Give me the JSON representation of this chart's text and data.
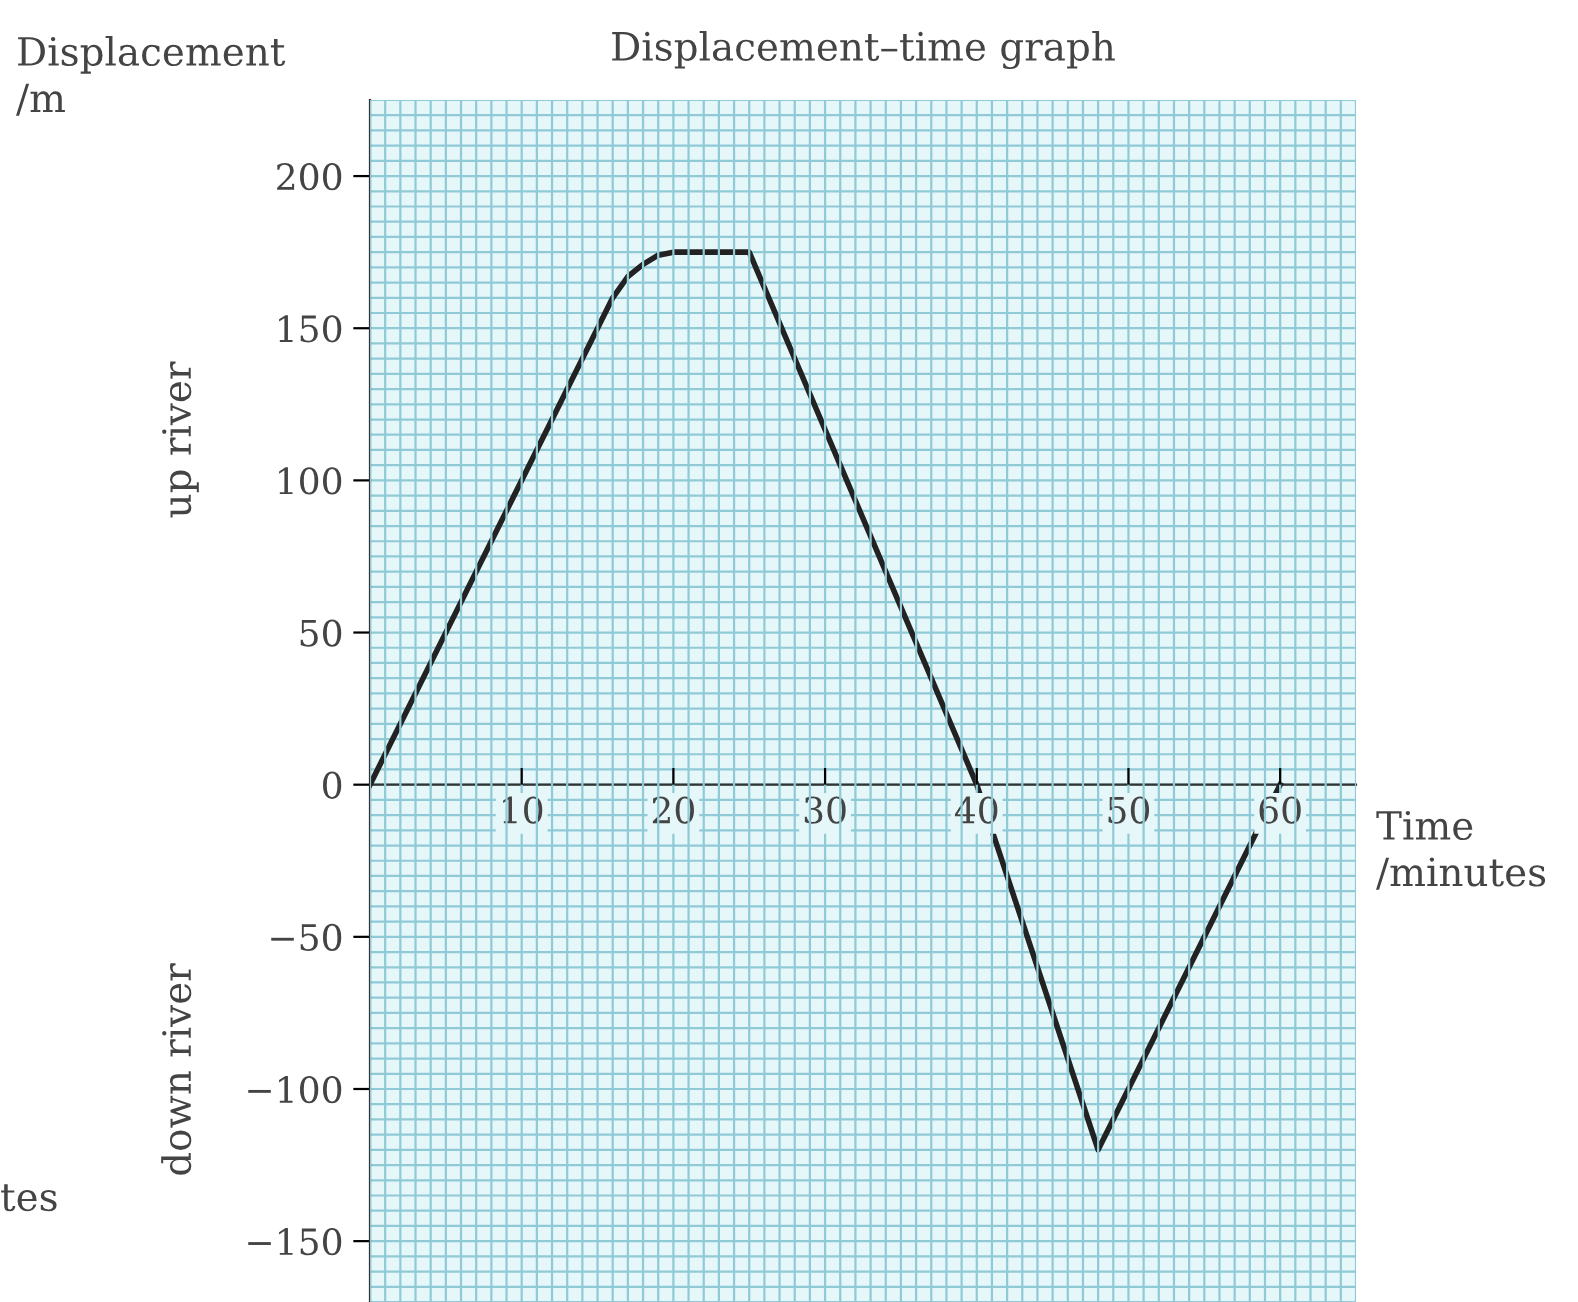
{
  "chart_data": {
    "type": "line",
    "title": "Displacement–time graph",
    "xlabel": "Time\n/minutes",
    "ylabel": "Displacement\n/m",
    "annotations": [
      "up river",
      "down river",
      "tes"
    ],
    "x": [
      0,
      15,
      16,
      17,
      18,
      19,
      20,
      25,
      40,
      48,
      60
    ],
    "series": [
      {
        "color": "#222222",
        "values": [
          0,
          150,
          160,
          167,
          171,
          174,
          175,
          175,
          0,
          -120,
          0
        ]
      }
    ],
    "xlim": [
      0,
      65
    ],
    "ylim": [
      -170,
      225
    ],
    "xticks": [
      10,
      20,
      30,
      40,
      50,
      60
    ],
    "yticks": [
      {
        "value": -150,
        "label": "−150"
      },
      {
        "value": -100,
        "label": "−100"
      },
      {
        "value": -50,
        "label": "−50"
      },
      0,
      50,
      100,
      150,
      200
    ],
    "grid": true,
    "marker": "none",
    "line_style": "solid"
  }
}
